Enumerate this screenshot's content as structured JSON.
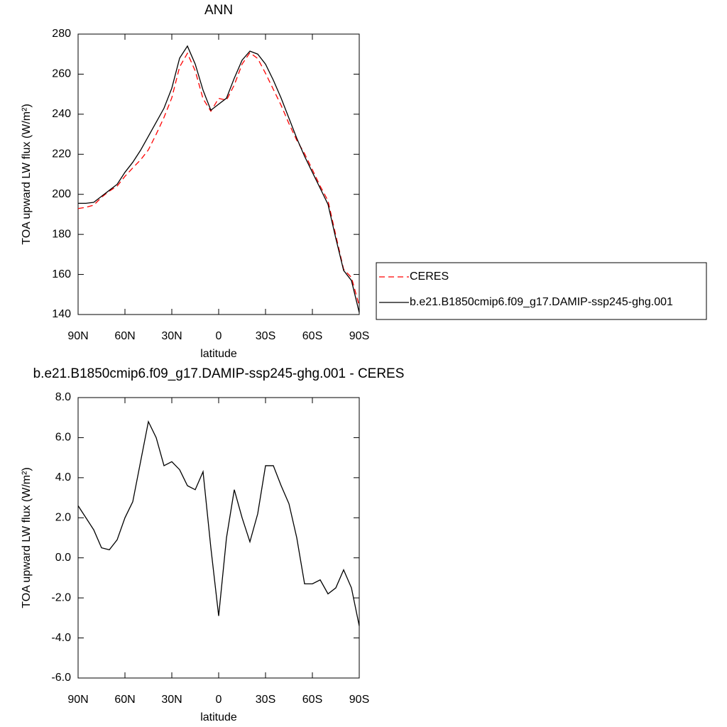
{
  "chart_data": [
    {
      "type": "line",
      "title": "ANN",
      "xlabel": "latitude",
      "ylabel": "TOA upward LW flux (W/m²)",
      "x": [
        90,
        85,
        80,
        75,
        70,
        65,
        60,
        55,
        50,
        45,
        40,
        35,
        30,
        25,
        20,
        15,
        10,
        5,
        0,
        -5,
        -10,
        -15,
        -20,
        -25,
        -30,
        -35,
        -40,
        -45,
        -50,
        -55,
        -60,
        -65,
        -70,
        -75,
        -80,
        -85,
        -90
      ],
      "series": [
        {
          "name": "CERES",
          "color": "#ff0000",
          "line_style": "dashed",
          "values": [
            192.9,
            193.5,
            194.6,
            198.5,
            201.6,
            204.1,
            209,
            213.2,
            217.2,
            222.2,
            230,
            238.4,
            248.2,
            263.6,
            270.4,
            261.6,
            247.7,
            241.5,
            247.9,
            247,
            254.6,
            265,
            270.7,
            267.8,
            260.4,
            252.4,
            244.4,
            235.3,
            227,
            220.3,
            212.3,
            204.1,
            196.8,
            179.5,
            162.6,
            158.5,
            144.4
          ]
        },
        {
          "name": "b.e21.B1850cmip6.f09_g17.DAMIP-ssp245-ghg.001",
          "color": "#000000",
          "line_style": "solid",
          "values": [
            195.5,
            195.5,
            196,
            199,
            202,
            205,
            211,
            216,
            222,
            229,
            236,
            243,
            253,
            268,
            274,
            265,
            252,
            242,
            245,
            248,
            258,
            267,
            271.5,
            270,
            265,
            257,
            248,
            238,
            228,
            219,
            211,
            203,
            195,
            178,
            162,
            157,
            141
          ]
        }
      ],
      "xlim": [
        90,
        -90
      ],
      "xticks": [
        {
          "value": 90,
          "label": "90N"
        },
        {
          "value": 60,
          "label": "60N"
        },
        {
          "value": 30,
          "label": "30N"
        },
        0,
        {
          "value": -30,
          "label": "30S"
        },
        {
          "value": -60,
          "label": "60S"
        },
        {
          "value": -90,
          "label": "90S"
        }
      ],
      "ylim": [
        140,
        280
      ],
      "yticks": [
        140,
        160,
        180,
        200,
        220,
        240,
        260,
        280
      ],
      "legend": "right"
    },
    {
      "type": "line",
      "title": "b.e21.B1850cmip6.f09_g17.DAMIP-ssp245-ghg.001 - CERES",
      "xlabel": "latitude",
      "ylabel": "TOA upward LW flux (W/m²)",
      "x": [
        90,
        85,
        80,
        75,
        70,
        65,
        60,
        55,
        50,
        45,
        40,
        35,
        30,
        25,
        20,
        15,
        10,
        5,
        0,
        -5,
        -10,
        -15,
        -20,
        -25,
        -30,
        -35,
        -40,
        -45,
        -50,
        -55,
        -60,
        -65,
        -70,
        -75,
        -80,
        -85,
        -90
      ],
      "values": [
        2.6,
        2.0,
        1.4,
        0.5,
        0.4,
        0.9,
        2.0,
        2.8,
        4.8,
        6.8,
        6.0,
        4.6,
        4.8,
        4.4,
        3.6,
        3.4,
        4.3,
        0.5,
        -2.9,
        1.0,
        3.4,
        2.0,
        0.8,
        2.2,
        4.6,
        4.6,
        3.6,
        2.7,
        1.0,
        -1.3,
        -1.3,
        -1.1,
        -1.8,
        -1.5,
        -0.6,
        -1.5,
        -3.4
      ],
      "color": "#000000",
      "xlim": [
        90,
        -90
      ],
      "xticks": [
        {
          "value": 90,
          "label": "90N"
        },
        {
          "value": 60,
          "label": "60N"
        },
        {
          "value": 30,
          "label": "30N"
        },
        0,
        {
          "value": -30,
          "label": "30S"
        },
        {
          "value": -60,
          "label": "60S"
        },
        {
          "value": -90,
          "label": "90S"
        }
      ],
      "ylim": [
        -6,
        8
      ],
      "yticks": [
        {
          "value": -6,
          "label": "-6.0"
        },
        {
          "value": -4,
          "label": "-4.0"
        },
        {
          "value": -2,
          "label": "-2.0"
        },
        {
          "value": 0,
          "label": "0.0"
        },
        {
          "value": 2,
          "label": "2.0"
        },
        {
          "value": 4,
          "label": "4.0"
        },
        {
          "value": 6,
          "label": "6.0"
        },
        {
          "value": 8,
          "label": "8.0"
        }
      ]
    }
  ]
}
